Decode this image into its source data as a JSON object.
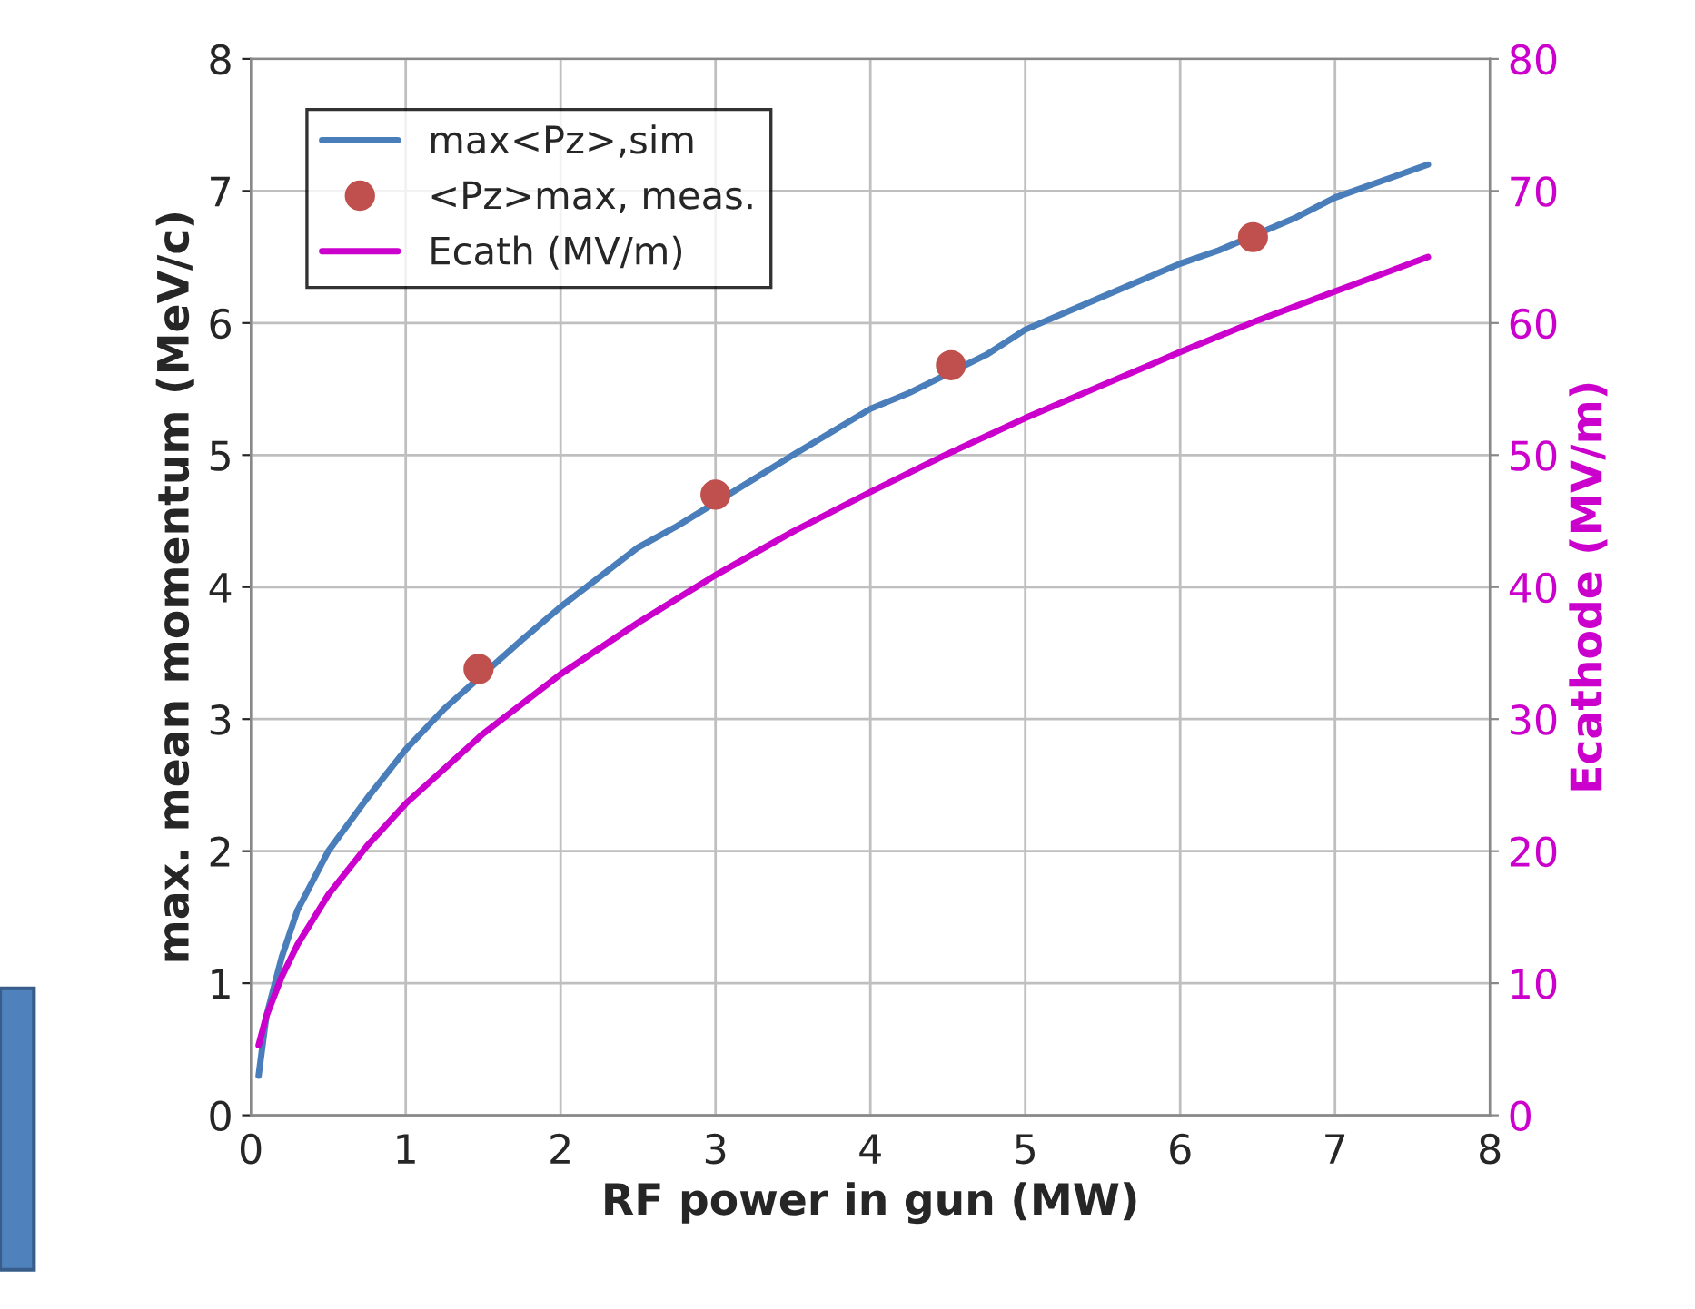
{
  "chart_data": {
    "type": "line",
    "xlabel": "RF power in gun (MW)",
    "ylabel": "max. mean momentum (MeV/c)",
    "y2label": "Ecathode (MV/m)",
    "xlim": [
      0,
      8
    ],
    "xticks": [
      0,
      1,
      2,
      3,
      4,
      5,
      6,
      7,
      8
    ],
    "ylim": [
      0,
      8
    ],
    "yticks": [
      0,
      1,
      2,
      3,
      4,
      5,
      6,
      7,
      8
    ],
    "y2lim": [
      0,
      80
    ],
    "y2ticks": [
      0,
      10,
      20,
      30,
      40,
      50,
      60,
      70,
      80
    ],
    "grid": true,
    "legend": "top left",
    "series": [
      {
        "name": "max<Pz>,sim",
        "color": "#4a7ebb",
        "x": [
          0.05,
          0.1,
          0.2,
          0.3,
          0.5,
          0.75,
          1,
          1.25,
          1.75,
          2,
          2.5,
          2.75,
          3.25,
          3.5,
          4,
          4.25,
          4.75,
          5,
          5.5,
          6,
          6.25,
          6.75,
          7,
          7.6
        ],
        "values": [
          0.3,
          0.75,
          1.2,
          1.55,
          2.0,
          2.4,
          2.77,
          3.08,
          3.6,
          3.85,
          4.3,
          4.46,
          4.82,
          5.0,
          5.35,
          5.47,
          5.76,
          5.95,
          6.2,
          6.45,
          6.55,
          6.8,
          6.95,
          7.2
        ]
      },
      {
        "name": "<Pz>max, meas.",
        "type": "scatter",
        "marker": "circle",
        "color": "#c0504d",
        "x": [
          1.47,
          3.0,
          4.52,
          6.47
        ],
        "values": [
          3.38,
          4.7,
          5.68,
          6.65
        ]
      },
      {
        "name": "Ecath (MV/m)",
        "axis": "y2",
        "color": "#cc00cc",
        "x": [
          0.05,
          0.1,
          0.2,
          0.3,
          0.5,
          0.75,
          1,
          1.5,
          2,
          2.5,
          3,
          3.5,
          4,
          4.5,
          5,
          5.5,
          6,
          6.5,
          7,
          7.6
        ],
        "values": [
          5.3,
          7.5,
          10.5,
          12.9,
          16.7,
          20.4,
          23.6,
          28.9,
          33.4,
          37.3,
          40.9,
          44.2,
          47.2,
          50.1,
          52.8,
          55.3,
          57.8,
          60.2,
          62.4,
          65.0
        ]
      }
    ]
  }
}
